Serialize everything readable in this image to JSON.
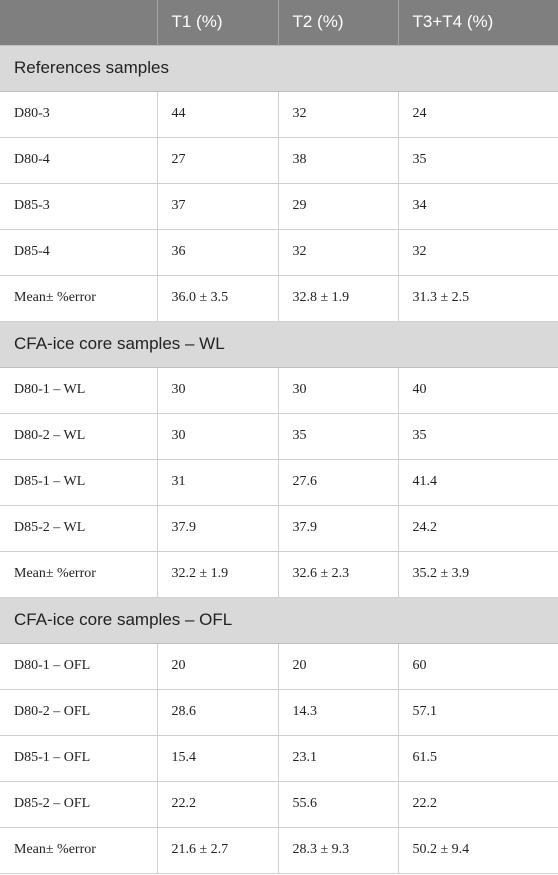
{
  "header": {
    "col0": "",
    "col1": "T1 (%)",
    "col2": "T2 (%)",
    "col3": "T3+T4 (%)"
  },
  "sections": [
    {
      "title": "References samples",
      "rows": [
        [
          "D80-3",
          "44",
          "32",
          "24"
        ],
        [
          "D80-4",
          "27",
          "38",
          "35"
        ],
        [
          "D85-3",
          "37",
          "29",
          "34"
        ],
        [
          "D85-4",
          "36",
          "32",
          "32"
        ],
        [
          "Mean± %error",
          "36.0 ± 3.5",
          "32.8 ± 1.9",
          "31.3 ± 2.5"
        ]
      ]
    },
    {
      "title": "CFA-ice core samples – WL",
      "rows": [
        [
          "D80-1 – WL",
          "30",
          "30",
          "40"
        ],
        [
          "D80-2 – WL",
          "30",
          "35",
          "35"
        ],
        [
          "D85-1 – WL",
          "31",
          "27.6",
          "41.4"
        ],
        [
          "D85-2 – WL",
          "37.9",
          "37.9",
          "24.2"
        ],
        [
          "Mean± %error",
          "32.2 ± 1.9",
          "32.6 ± 2.3",
          "35.2 ± 3.9"
        ]
      ]
    },
    {
      "title": "CFA-ice core samples – OFL",
      "rows": [
        [
          "D80-1 – OFL",
          "20",
          "20",
          "60"
        ],
        [
          "D80-2 – OFL",
          "28.6",
          "14.3",
          "57.1"
        ],
        [
          "D85-1 – OFL",
          "15.4",
          "23.1",
          "61.5"
        ],
        [
          "D85-2 – OFL",
          "22.2",
          "55.6",
          "22.2"
        ],
        [
          "Mean± %error",
          "21.6 ± 2.7",
          "28.3 ± 9.3",
          "50.2 ± 9.4"
        ]
      ]
    }
  ]
}
